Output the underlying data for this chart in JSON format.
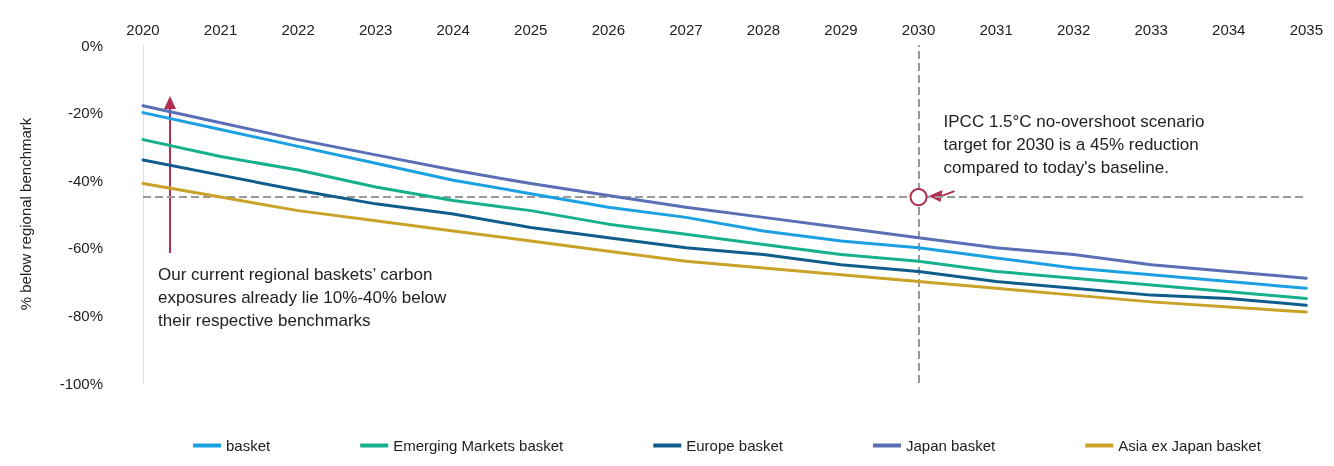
{
  "chart_data": {
    "type": "line",
    "ylabel": "% below regional benchmark",
    "categories": [
      "2020",
      "2021",
      "2022",
      "2023",
      "2024",
      "2025",
      "2026",
      "2027",
      "2028",
      "2029",
      "2030",
      "2031",
      "2032",
      "2033",
      "2034",
      "2035"
    ],
    "ylim": [
      -100,
      0
    ],
    "yticks": [
      {
        "value": -100,
        "label": "-100%"
      },
      {
        "value": -80,
        "label": "-80%"
      },
      {
        "value": -60,
        "label": "-60%"
      },
      {
        "value": -40,
        "label": "-40%"
      },
      {
        "value": -20,
        "label": "-20%"
      },
      {
        "value": 0,
        "label": "0%"
      }
    ],
    "series": [
      {
        "name": "basket",
        "color": "#1ba1e2",
        "values": [
          -20,
          -25,
          -30,
          -35,
          -40,
          -44,
          -48,
          -51,
          -55,
          -58,
          -60,
          -63,
          -66,
          -68,
          -70,
          -72
        ]
      },
      {
        "name": "Emerging Markets basket",
        "color": "#16b08c",
        "values": [
          -28,
          -33,
          -37,
          -42,
          -46,
          -49,
          -53,
          -56,
          -59,
          -62,
          -64,
          -67,
          -69,
          -71,
          -73,
          -75
        ]
      },
      {
        "name": "Europe basket",
        "color": "#0f5d8c",
        "values": [
          -34,
          -38.5,
          -43,
          -47,
          -50,
          -54,
          -57,
          -60,
          -62,
          -65,
          -67,
          -70,
          -72,
          -74,
          -75,
          -77
        ]
      },
      {
        "name": "Japan basket",
        "color": "#5a6fb5",
        "values": [
          -18,
          -23,
          -28,
          -32.5,
          -37,
          -41,
          -44.5,
          -48,
          -51,
          -54,
          -57,
          -60,
          -62,
          -65,
          -67,
          -69
        ]
      },
      {
        "name": "Asia ex Japan basket",
        "color": "#c9a227",
        "values": [
          -41,
          -45,
          -49,
          -52,
          -55,
          -58,
          -61,
          -64,
          -66,
          -68,
          -70,
          -72,
          -74,
          -76,
          -77.5,
          -79
        ]
      }
    ],
    "ref_lines": [
      {
        "axis": "y",
        "value": -45,
        "color": "#999999",
        "line_style": "dashed"
      },
      {
        "axis": "x",
        "value": "2030",
        "color": "#999999",
        "line_style": "dashed"
      }
    ],
    "annotations": [
      {
        "text": "IPCC 1.5°C no-overshoot scenario target for 2030 is a 45% reduction compared to today's baseline.",
        "x": "2030",
        "y": -45
      },
      "Our current regional baskets’ carbon exposures already lie 10%-40% below their respective benchmarks"
    ],
    "legend": "bottom",
    "grid": false,
    "marker": "none",
    "line_style": "solid"
  }
}
